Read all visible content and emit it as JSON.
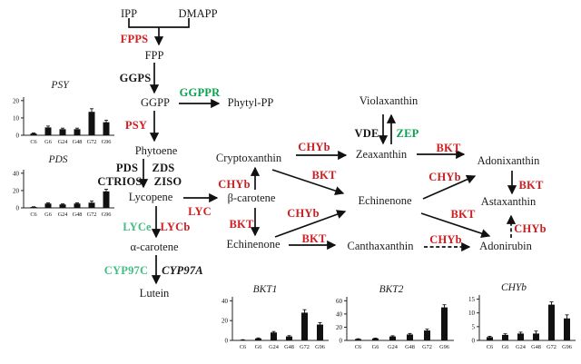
{
  "colors": {
    "enzyme_red": "#cf1d20",
    "enzyme_green": "#0aa14e",
    "enzyme_green_light": "#43bd85",
    "text_black": "#1b1b1b"
  },
  "nodes": {
    "ipp": "IPP",
    "dmapp": "DMAPP",
    "fpp": "FPP",
    "ggpp": "GGPP",
    "phytylpp": "Phytyl-PP",
    "phytoene": "Phytoene",
    "lycopene": "Lycopene",
    "bcarotene": "β-carotene",
    "acarotene": "α-carotene",
    "lutein": "Lutein",
    "cryptoxanthin": "Cryptoxanthin",
    "echinenone_left": "Echinenone",
    "violaxanthin": "Violaxanthin",
    "zeaxanthin": "Zeaxanthin",
    "adonixanthin": "Adonixanthin",
    "echinenone_mid": "Echinenone",
    "astaxanthin": "Astaxanthin",
    "canthaxanthin": "Canthaxanthin",
    "adonirubin": "Adonirubin"
  },
  "enzymes": {
    "fpps": "FPPS",
    "ggps": "GGPS",
    "ggppr": "GGPPR",
    "psy": "PSY",
    "pds": "PDS",
    "zds": "ZDS",
    "ctrios": "CTRIOS",
    "ziso": "ZISO",
    "lyc": "LYC",
    "lyce": "LYCe",
    "lycb": "LYCb",
    "cyp97c": "CYP97C",
    "cyp97a": "CYP97A",
    "chyb_beta_crypto": "CHYb",
    "bkt_beta_echin": "BKT",
    "chyb_crypto_zea": "CHYb",
    "bkt_crypto_echin": "BKT",
    "chyb_echin_echin": "CHYb",
    "bkt_echin_cantha": "BKT",
    "vde": "VDE",
    "zep": "ZEP",
    "bkt_zea_adonix": "BKT",
    "chyb_echin_adonix": "CHYb",
    "bkt_adonix_astax": "BKT",
    "bkt_echin_adonirubin": "BKT",
    "chyb_cantha_adonirubin": "CHYb",
    "chyb_adonirubin_astax": "CHYb"
  },
  "chart_data": [
    {
      "type": "bar",
      "title": "PSY",
      "categories": [
        "C6",
        "G6",
        "G24",
        "G48",
        "G72",
        "G96"
      ],
      "values": [
        1,
        4.5,
        3.5,
        3.5,
        13.5,
        7.5
      ],
      "errors": [
        0.3,
        0.8,
        0.6,
        0.6,
        1.8,
        1.2
      ],
      "yticks": [
        0,
        10,
        20
      ],
      "ylim": [
        0,
        22
      ],
      "xlabel": "",
      "ylabel": "",
      "grid": false
    },
    {
      "type": "bar",
      "title": "PDS",
      "categories": [
        "C6",
        "G6",
        "G24",
        "G48",
        "G72",
        "G96"
      ],
      "values": [
        1,
        5,
        4,
        5,
        6,
        19
      ],
      "errors": [
        0.3,
        0.8,
        0.6,
        0.8,
        2,
        2.5
      ],
      "yticks": [
        0,
        20,
        40
      ],
      "ylim": [
        0,
        44
      ],
      "xlabel": "",
      "ylabel": "",
      "grid": false
    },
    {
      "type": "bar",
      "title": "BKT1",
      "categories": [
        "C6",
        "G6",
        "G24",
        "G48",
        "G72",
        "G96"
      ],
      "values": [
        0.5,
        2,
        8,
        4,
        28,
        16
      ],
      "errors": [
        0.2,
        0.5,
        1,
        0.8,
        3,
        2
      ],
      "yticks": [
        0,
        20,
        40
      ],
      "ylim": [
        0,
        44
      ],
      "xlabel": "",
      "ylabel": "",
      "grid": false
    },
    {
      "type": "bar",
      "title": "BKT2",
      "categories": [
        "C6",
        "G6",
        "G24",
        "G48",
        "G72",
        "G96"
      ],
      "values": [
        2,
        3,
        6,
        9,
        15,
        50
      ],
      "errors": [
        0.5,
        0.5,
        1,
        1.5,
        2,
        4
      ],
      "yticks": [
        0,
        20,
        40,
        60
      ],
      "ylim": [
        0,
        66
      ],
      "xlabel": "",
      "ylabel": "",
      "grid": false
    },
    {
      "type": "bar",
      "title": "CHYb",
      "categories": [
        "C6",
        "G6",
        "G24",
        "G48",
        "G72",
        "G96"
      ],
      "values": [
        1.2,
        2,
        2.5,
        2.5,
        13,
        8
      ],
      "errors": [
        0.3,
        0.4,
        0.5,
        0.9,
        1,
        1.3
      ],
      "yticks": [
        0,
        5,
        10,
        15
      ],
      "ylim": [
        0,
        16.5
      ],
      "xlabel": "",
      "ylabel": "",
      "grid": false
    }
  ]
}
